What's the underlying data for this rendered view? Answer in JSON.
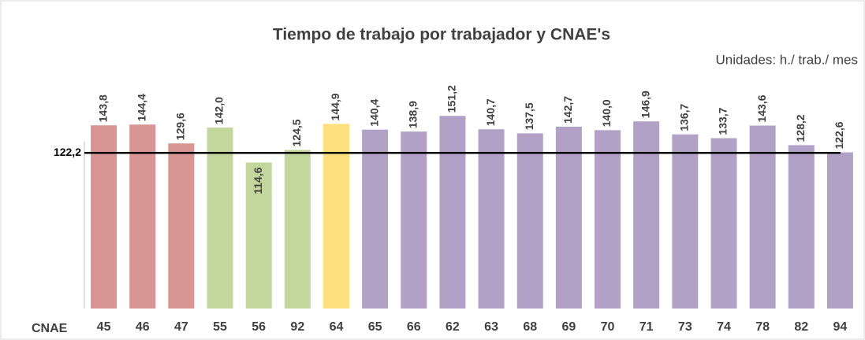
{
  "chart_data": {
    "type": "bar",
    "title": "Tiempo de trabajo por trabajador y CNAE's",
    "subtitle": "Unidades: h./ trab./ mes",
    "x_label": "CNAE",
    "categories": [
      "45",
      "46",
      "47",
      "55",
      "56",
      "92",
      "64",
      "65",
      "66",
      "62",
      "63",
      "68",
      "69",
      "70",
      "71",
      "73",
      "74",
      "78",
      "82",
      "94"
    ],
    "values": [
      143.8,
      144.4,
      129.6,
      142.0,
      114.6,
      124.5,
      144.9,
      140.4,
      138.9,
      151.2,
      140.7,
      137.5,
      142.7,
      140.0,
      146.9,
      136.7,
      133.7,
      143.6,
      128.2,
      122.6
    ],
    "value_labels": [
      "143,8",
      "144,4",
      "129,6",
      "142,0",
      "114,6",
      "124,5",
      "144,9",
      "140,4",
      "138,9",
      "151,2",
      "140,7",
      "137,5",
      "142,7",
      "140,0",
      "146,9",
      "136,7",
      "133,7",
      "143,6",
      "128,2",
      "122,6"
    ],
    "colors": [
      "#d99594",
      "#d99594",
      "#d99594",
      "#c3d69b",
      "#c3d69b",
      "#c3d69b",
      "#ffe07f",
      "#b2a1c7",
      "#b2a1c7",
      "#b2a1c7",
      "#b2a1c7",
      "#b2a1c7",
      "#b2a1c7",
      "#b2a1c7",
      "#b2a1c7",
      "#b2a1c7",
      "#b2a1c7",
      "#b2a1c7",
      "#b2a1c7",
      "#b2a1c7"
    ],
    "ylim": [
      0,
      160
    ],
    "reference_line": {
      "value": 122.2,
      "label": "122,2"
    }
  }
}
